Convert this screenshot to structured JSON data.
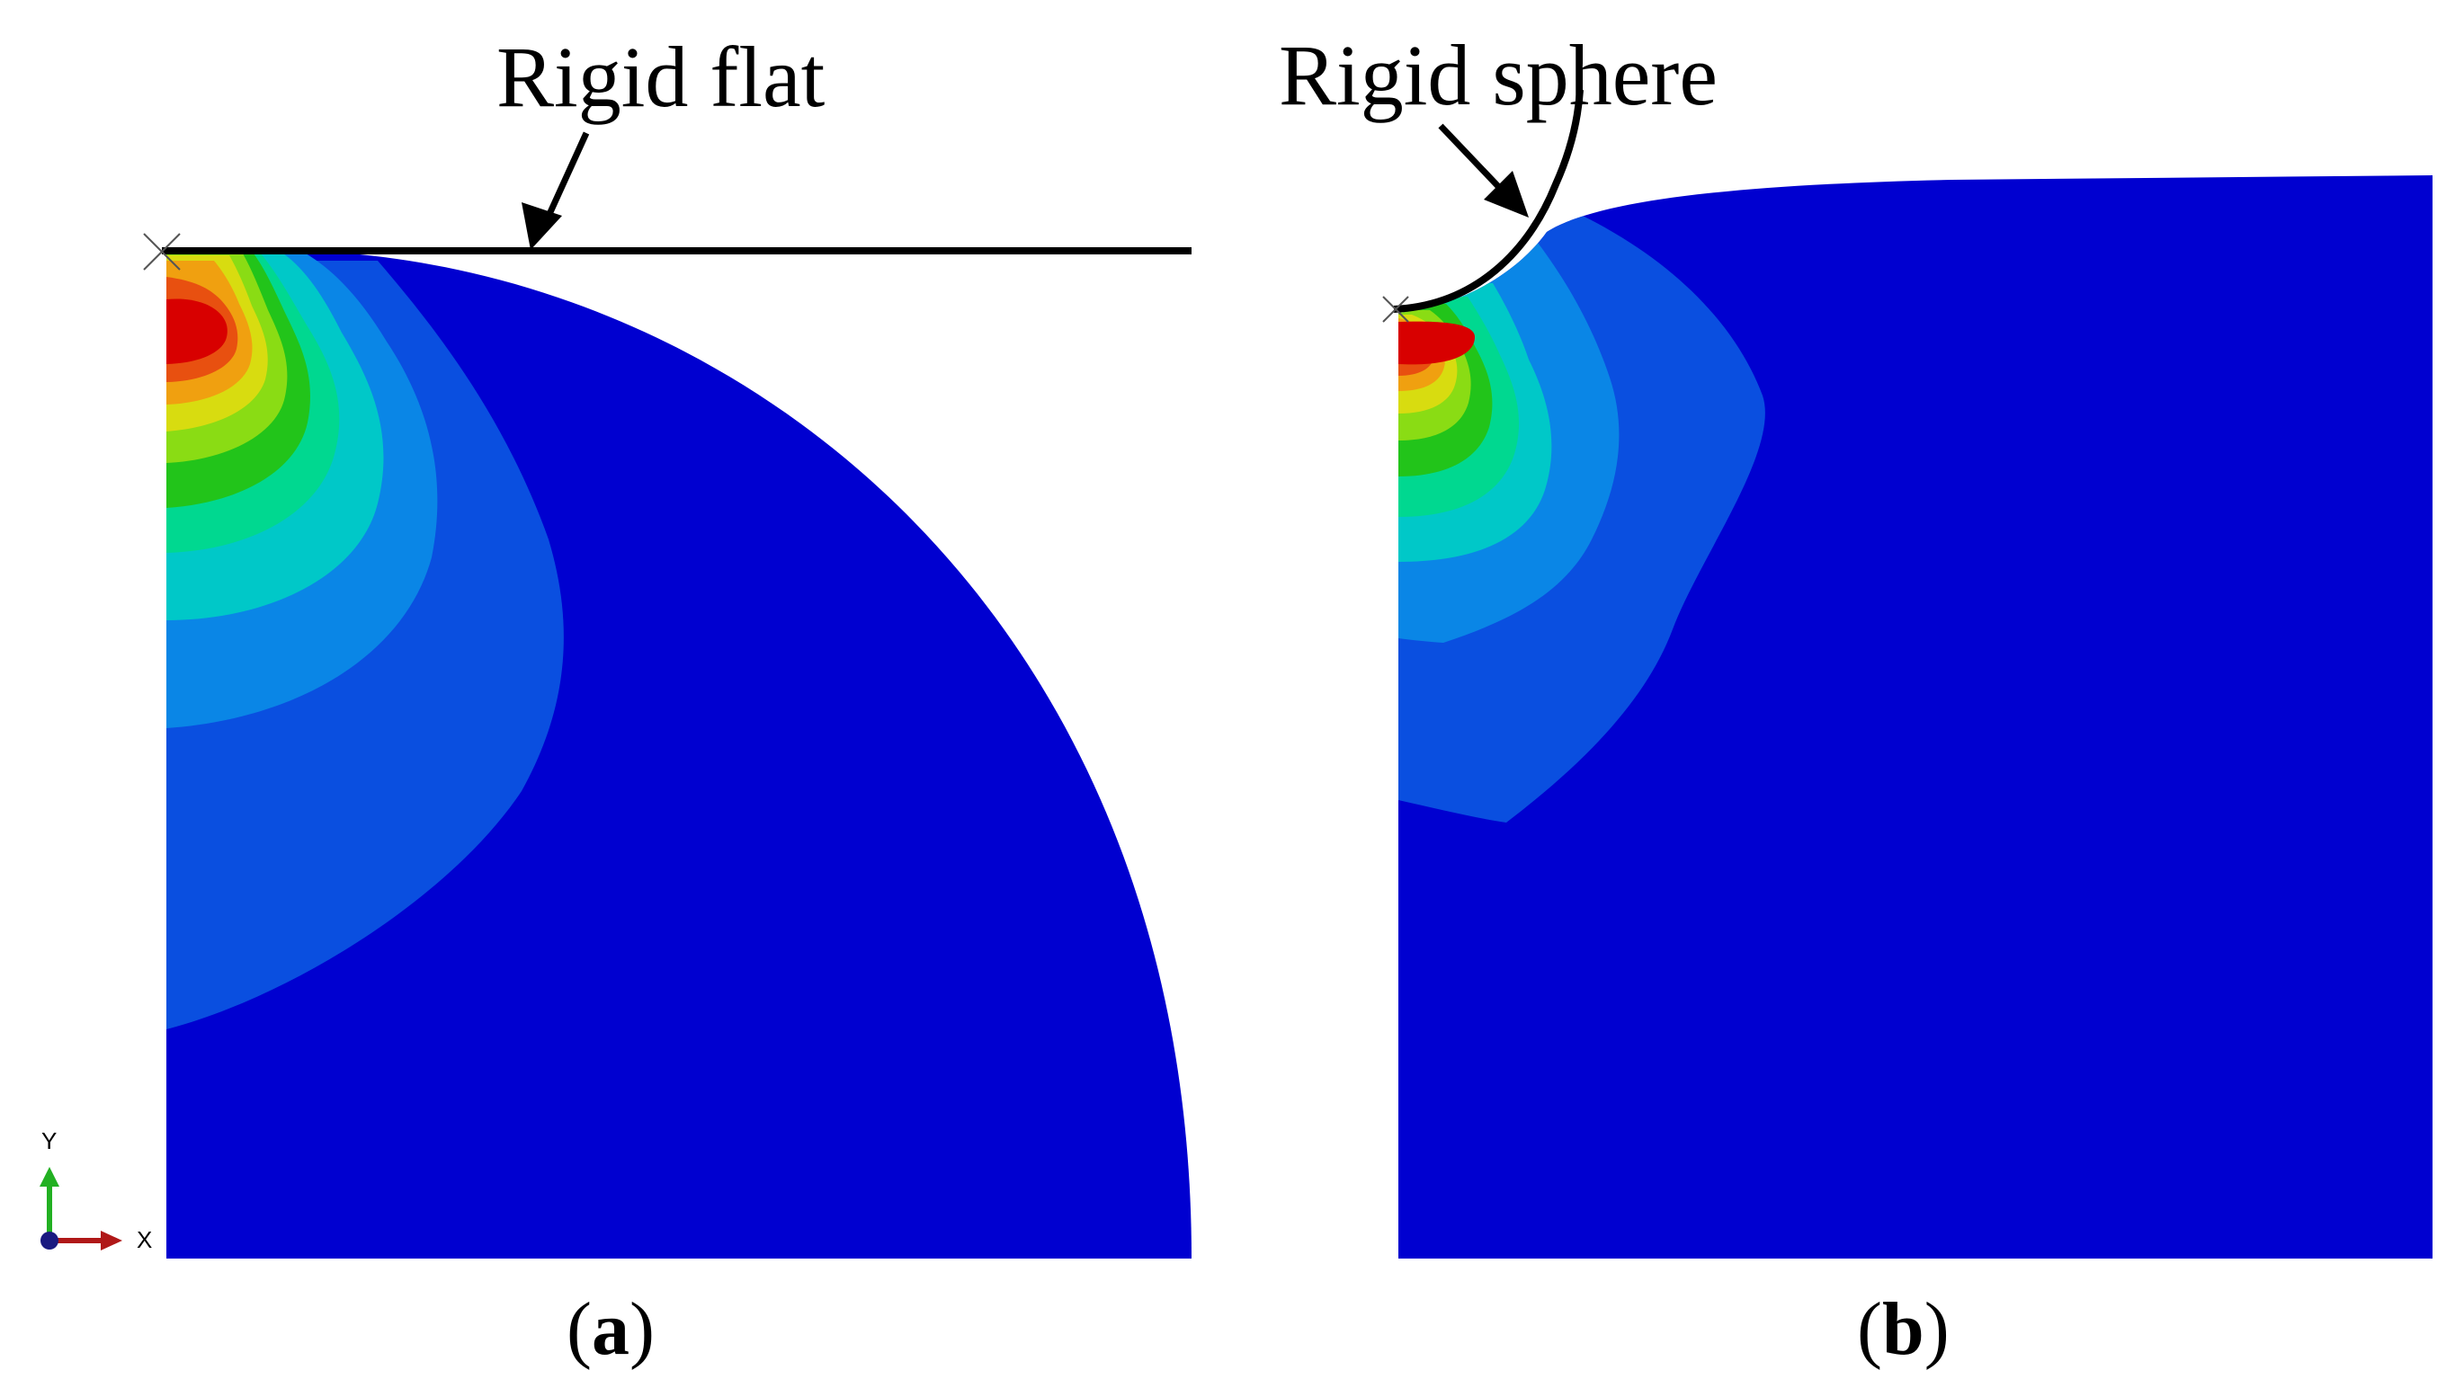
{
  "panel_a": {
    "title": "Rigid flat",
    "caption_open": "(",
    "caption_letter": "a",
    "caption_close": ")"
  },
  "panel_b": {
    "title": "Rigid sphere",
    "caption_open": "(",
    "caption_letter": "b",
    "caption_close": ")"
  },
  "triad": {
    "y_label": "Y",
    "x_label": "X",
    "y_color": "#22b022",
    "x_color": "#b01818",
    "origin_color": "#1a1a80"
  },
  "contour_colors": [
    "#0000d0",
    "#0a4fe0",
    "#0a86e6",
    "#00c8c8",
    "#00d890",
    "#22c41a",
    "#8adc14",
    "#d8dc10",
    "#f0a010",
    "#e85010",
    "#d80000"
  ]
}
